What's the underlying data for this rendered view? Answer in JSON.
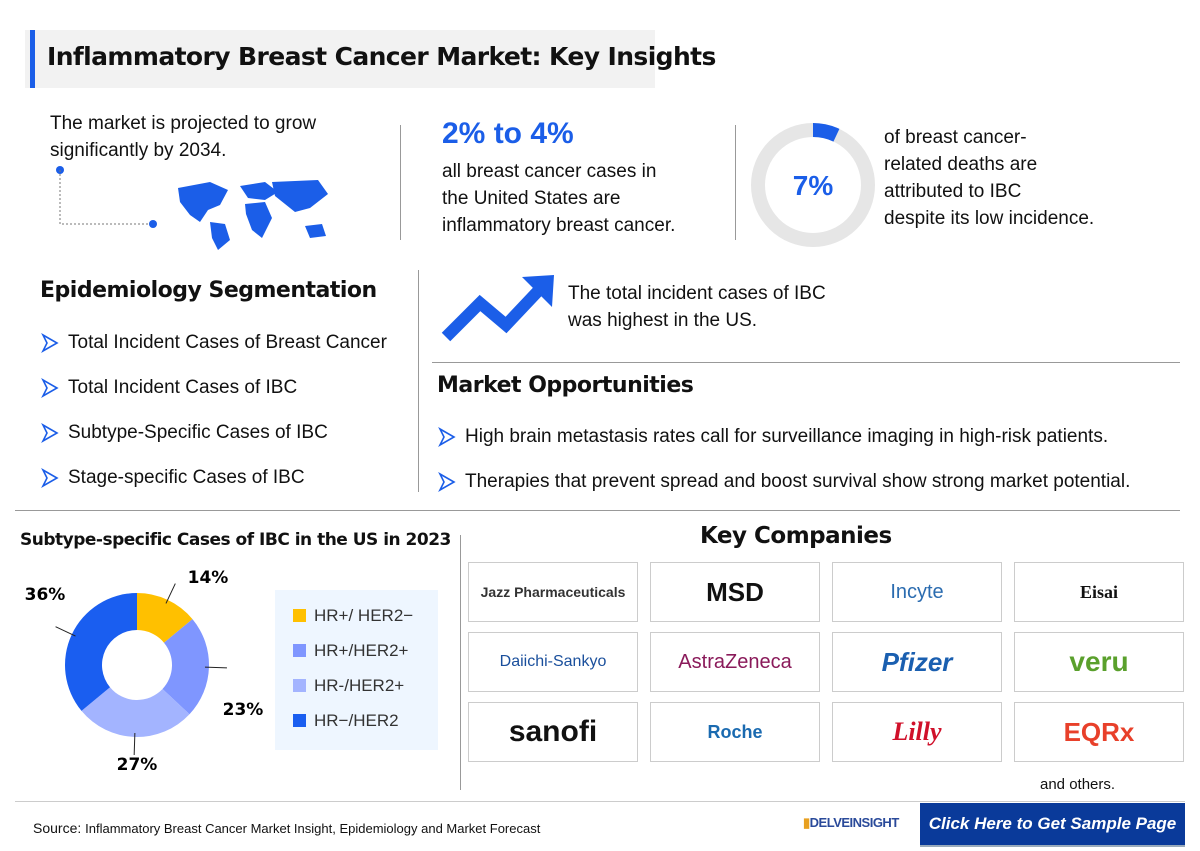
{
  "title": "Inflammatory Breast Cancer Market: Key Insights",
  "insights": {
    "growth_text": [
      "The market is projected to grow",
      "significantly by 2034."
    ],
    "stat_value": "2% to 4%",
    "stat_text": [
      "all breast cancer cases in",
      "the United States are",
      "inflammatory breast cancer."
    ],
    "deaths_value": "7%",
    "deaths_fraction": 0.07,
    "deaths_text": [
      "of breast cancer-",
      "related deaths are",
      "attributed to IBC",
      "despite its low incidence."
    ]
  },
  "epidemiology": {
    "heading": "Epidemiology Segmentation",
    "items": [
      "Total Incident Cases of  Breast Cancer",
      "Total Incident Cases of  IBC",
      "Subtype-Specific Cases of IBC",
      "Stage-specific Cases of IBC"
    ]
  },
  "trend_text": [
    "The total incident cases of IBC",
    "was highest in the US."
  ],
  "opportunities": {
    "heading": "Market Opportunities",
    "items": [
      "High brain metastasis rates call for surveillance imaging in high-risk patients.",
      "Therapies that prevent spread and boost survival show strong market potential."
    ]
  },
  "chart_data": {
    "type": "pie",
    "donut": true,
    "title": "Subtype-specific Cases of IBC in the US in 2023",
    "categories": [
      "HR+/ HER2−",
      "HR+/HER2+",
      "HR-/HER2+",
      "HR−/HER2"
    ],
    "values": [
      14,
      23,
      27,
      36
    ],
    "labels": [
      "14%",
      "23%",
      "27%",
      "36%"
    ],
    "colors": [
      "#ffc000",
      "#7f96ff",
      "#a3b4ff",
      "#1a5ef0"
    ],
    "legend": "right"
  },
  "companies": {
    "heading": "Key Companies",
    "items": [
      "Jazz Pharmaceuticals",
      "MSD",
      "Incyte",
      "Eisai",
      "Daiichi-Sankyo",
      "AstraZeneca",
      "Pfizer",
      "veru",
      "sanofi",
      "Roche",
      "Lilly",
      "EQRx"
    ],
    "others": "and others."
  },
  "footer": {
    "source_label": "Source:",
    "source_text": "Inflammatory Breast Cancer Market Insight, Epidemiology and Market Forecast",
    "brand": "DELVEINSIGHT",
    "cta": "Click Here to Get Sample Page"
  },
  "colors": {
    "accent": "#1b5ee8",
    "cta_bg": "#0a3a9a"
  }
}
